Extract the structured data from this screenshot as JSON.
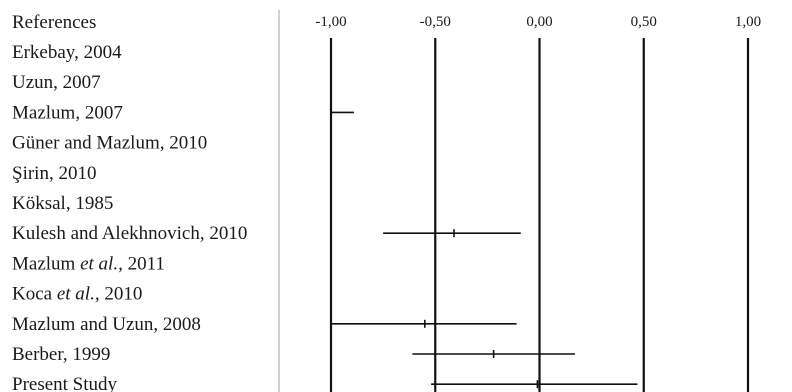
{
  "chart_data": {
    "type": "forest",
    "header": "References",
    "x_ticks": [
      "-1,00",
      "-0,50",
      "0,00",
      "0,50",
      "1,00"
    ],
    "x_tick_values": [
      -1.0,
      -0.5,
      0.0,
      0.5,
      1.0
    ],
    "xlim": [
      -1.0,
      1.0
    ],
    "grid": "vertical lines at tick values",
    "studies": [
      {
        "label": [
          {
            "t": "Erkebay, 2004"
          }
        ],
        "estimate": null,
        "ci_low": null,
        "ci_high": null
      },
      {
        "label": [
          {
            "t": "Uzun, 2007"
          }
        ],
        "estimate": null,
        "ci_low": null,
        "ci_high": null
      },
      {
        "label": [
          {
            "t": "Mazlum, 2007"
          }
        ],
        "estimate": null,
        "ci_low": -1.0,
        "ci_high": -0.89
      },
      {
        "label": [
          {
            "t": "Güner and Mazlum, 2010"
          }
        ],
        "estimate": null,
        "ci_low": null,
        "ci_high": null
      },
      {
        "label": [
          {
            "t": "Şirin, 2010"
          }
        ],
        "estimate": null,
        "ci_low": null,
        "ci_high": null
      },
      {
        "label": [
          {
            "t": "Köksal, 1985"
          }
        ],
        "estimate": null,
        "ci_low": null,
        "ci_high": null
      },
      {
        "label": [
          {
            "t": "Kulesh and Alekhnovich, 2010"
          }
        ],
        "estimate": -0.41,
        "ci_low": -0.75,
        "ci_high": -0.09
      },
      {
        "label": [
          {
            "t": "Mazlum "
          },
          {
            "t": "et al.,",
            "i": true
          },
          {
            "t": " 2011"
          }
        ],
        "estimate": null,
        "ci_low": null,
        "ci_high": null
      },
      {
        "label": [
          {
            "t": "Koca "
          },
          {
            "t": "et al.,",
            "i": true
          },
          {
            "t": " 2010"
          }
        ],
        "estimate": null,
        "ci_low": null,
        "ci_high": null
      },
      {
        "label": [
          {
            "t": "Mazlum and Uzun, 2008"
          }
        ],
        "estimate": -0.55,
        "ci_low": -1.0,
        "ci_high": -0.11
      },
      {
        "label": [
          {
            "t": "Berber, 1999"
          }
        ],
        "estimate": -0.22,
        "ci_low": -0.61,
        "ci_high": 0.17
      },
      {
        "label": [
          {
            "t": "Present Study"
          }
        ],
        "estimate": -0.01,
        "ci_low": -0.52,
        "ci_high": 0.47
      }
    ]
  }
}
